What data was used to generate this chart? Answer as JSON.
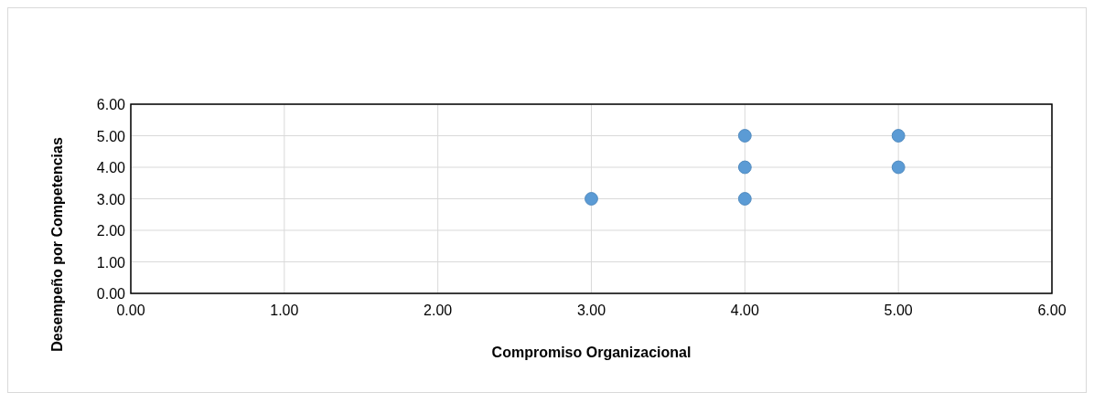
{
  "chart_data": {
    "type": "scatter",
    "xlabel": "Compromiso Organizacional",
    "ylabel": "Desempeño por Competencias",
    "x": [
      3,
      4,
      4,
      4,
      5,
      5
    ],
    "series": [
      {
        "color": "#5b9bd5",
        "values": [
          3,
          5,
          4,
          3,
          5,
          4
        ]
      }
    ],
    "xlim": [
      0,
      6
    ],
    "ylim": [
      0,
      6
    ],
    "xticks": [
      {
        "value": 0,
        "label": "0.00"
      },
      {
        "value": 1,
        "label": "1.00"
      },
      {
        "value": 2,
        "label": "2.00"
      },
      {
        "value": 3,
        "label": "3.00"
      },
      {
        "value": 4,
        "label": "4.00"
      },
      {
        "value": 5,
        "label": "5.00"
      },
      {
        "value": 6,
        "label": "6.00"
      }
    ],
    "yticks": [
      {
        "value": 0,
        "label": "0.00"
      },
      {
        "value": 1,
        "label": "1.00"
      },
      {
        "value": 2,
        "label": "2.00"
      },
      {
        "value": 3,
        "label": "3.00"
      },
      {
        "value": 4,
        "label": "4.00"
      },
      {
        "value": 5,
        "label": "5.00"
      },
      {
        "value": 6,
        "label": "6.00"
      }
    ],
    "grid": true,
    "marker": "circle"
  }
}
